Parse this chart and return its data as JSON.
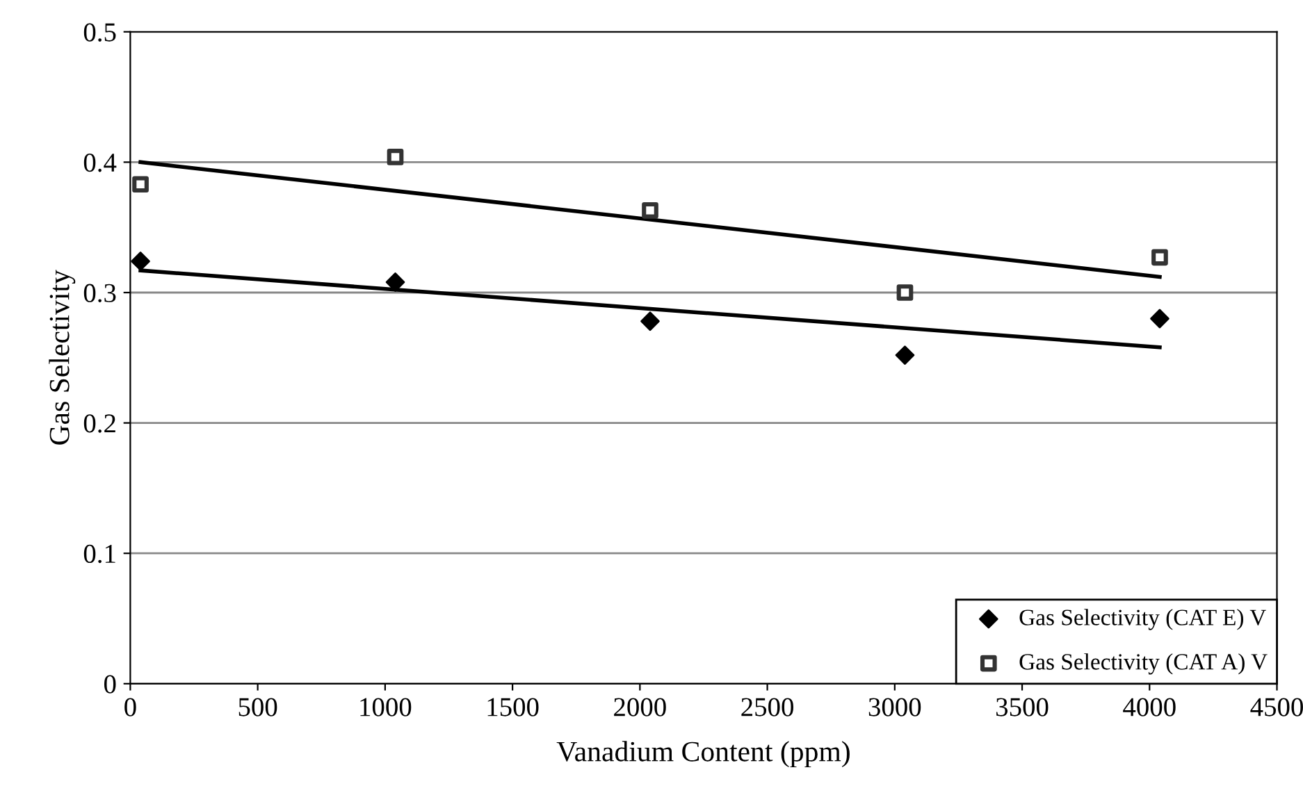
{
  "chart_data": {
    "type": "scatter",
    "xlabel": "Vanadium Content (ppm)",
    "ylabel": "Gas Selectivity",
    "xlim": [
      0,
      4500
    ],
    "xticks": [
      0,
      500,
      1000,
      1500,
      2000,
      2500,
      3000,
      3500,
      4000,
      4500
    ],
    "ylim": [
      0,
      0.5
    ],
    "yticks": [
      0,
      0.1,
      0.2,
      0.3,
      0.4,
      0.5
    ],
    "grid": "y",
    "legend": "bottom right",
    "series": [
      {
        "name": "Gas Selectivity (CAT E) V",
        "color": "#000000",
        "marker": "diamond",
        "x": [
          40,
          1040,
          2040,
          3040,
          4040
        ],
        "values": [
          0.324,
          0.308,
          0.278,
          0.252,
          0.28
        ]
      },
      {
        "name": "Gas Selectivity (CAT A) V",
        "color": "#333333",
        "marker": "square",
        "x": [
          40,
          1040,
          2040,
          3040,
          4040
        ],
        "values": [
          0.383,
          0.404,
          0.363,
          0.3,
          0.327
        ]
      },
      {
        "type": "line",
        "color": "#000000",
        "x": [
          40,
          4040
        ],
        "values": [
          0.317,
          0.258
        ]
      },
      {
        "type": "line",
        "color": "#000000",
        "x": [
          40,
          4040
        ],
        "values": [
          0.4,
          0.312
        ]
      }
    ]
  }
}
